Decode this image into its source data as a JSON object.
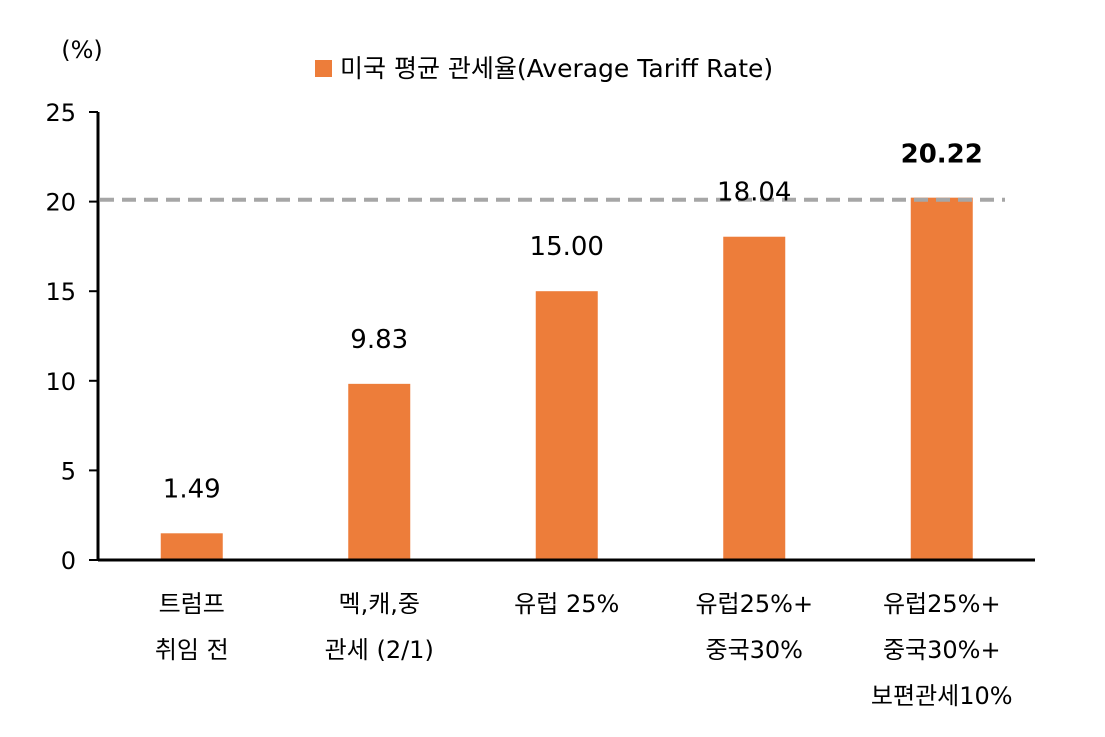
{
  "chart_data": {
    "type": "bar",
    "unit_label": "(%)",
    "legend": {
      "entries": [
        "미국 평균 관세율(Average Tariff Rate)"
      ],
      "placement": "top-center"
    },
    "categories": [
      [
        "트럼프",
        "취임 전"
      ],
      [
        "멕,캐,중",
        "관세 (2/1)"
      ],
      [
        "유럽 25%"
      ],
      [
        "유럽25%+",
        "중국30%"
      ],
      [
        "유럽25%+",
        "중국30%+",
        "보편관세10%"
      ]
    ],
    "series": [
      {
        "name": "미국 평균 관세율(Average Tariff Rate)",
        "values": [
          1.49,
          9.83,
          15.0,
          18.04,
          20.22
        ]
      }
    ],
    "data_labels": [
      "1.49",
      "9.83",
      "15.00",
      "18.04",
      "20.22"
    ],
    "highlight_index": 4,
    "reference_line": {
      "value": 20.22,
      "style": "dashed"
    },
    "ylim": [
      0,
      25
    ],
    "yticks": [
      0,
      5,
      10,
      15,
      20,
      25
    ],
    "grid": false,
    "colors": {
      "bar": "#ED7D3A",
      "reference_line": "#A6A6A6",
      "axis": "#000000"
    }
  }
}
